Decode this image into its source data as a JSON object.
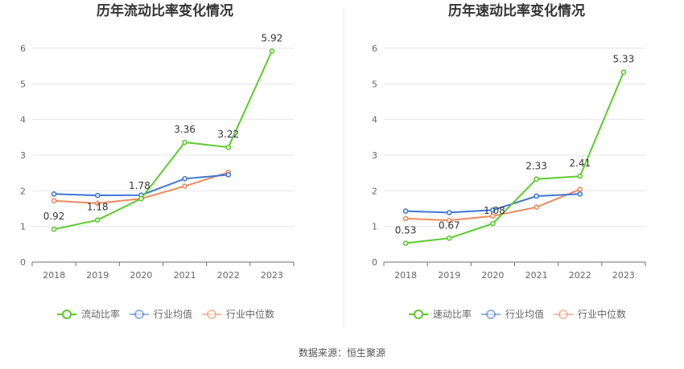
{
  "footer": {
    "source": "数据来源：恒生聚源"
  },
  "colors": {
    "company": "#5ccb2c",
    "industry_avg": "#3f76d8",
    "industry_median": "#ee8a5f"
  },
  "chart_data": [
    {
      "type": "line",
      "title": "历年流动比率变化情况",
      "categories": [
        "2018",
        "2019",
        "2020",
        "2021",
        "2022",
        "2023"
      ],
      "ylim": [
        0,
        6
      ],
      "yticks": [
        "0",
        "1",
        "2",
        "3",
        "4",
        "5",
        "6"
      ],
      "grid": true,
      "legend": "bottom",
      "series": [
        {
          "name": "流动比率",
          "values": [
            0.92,
            1.18,
            1.78,
            3.36,
            3.22,
            5.92
          ],
          "labels": [
            "0.92",
            "1.18",
            "1.78",
            "3.36",
            "3.22",
            "5.92"
          ]
        },
        {
          "name": "行业均值",
          "values": [
            1.91,
            1.87,
            1.88,
            2.34,
            2.45,
            null
          ]
        },
        {
          "name": "行业中位数",
          "values": [
            1.72,
            1.65,
            1.78,
            2.13,
            2.52,
            null
          ]
        }
      ]
    },
    {
      "type": "line",
      "title": "历年速动比率变化情况",
      "categories": [
        "2018",
        "2019",
        "2020",
        "2021",
        "2022",
        "2023"
      ],
      "ylim": [
        0,
        6
      ],
      "yticks": [
        "0",
        "1",
        "2",
        "3",
        "4",
        "5",
        "6"
      ],
      "grid": true,
      "legend": "bottom",
      "series": [
        {
          "name": "速动比率",
          "values": [
            0.53,
            0.67,
            1.08,
            2.33,
            2.41,
            5.33
          ],
          "labels": [
            "0.53",
            "0.67",
            "1.08",
            "2.33",
            "2.41",
            "5.33"
          ]
        },
        {
          "name": "行业均值",
          "values": [
            1.43,
            1.39,
            1.46,
            1.85,
            1.91,
            null
          ]
        },
        {
          "name": "行业中位数",
          "values": [
            1.22,
            1.17,
            1.29,
            1.54,
            2.04,
            null
          ]
        }
      ]
    }
  ]
}
